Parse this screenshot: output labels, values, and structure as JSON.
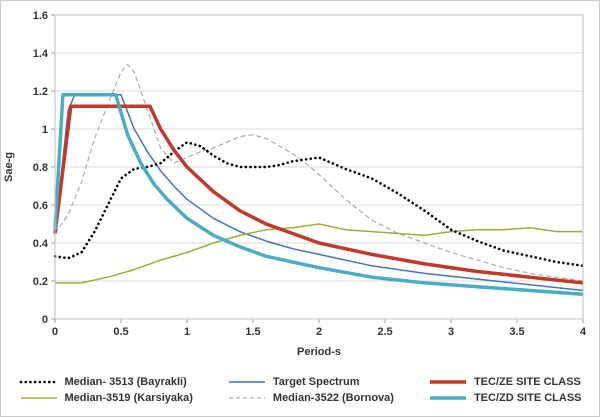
{
  "chart_data": {
    "type": "line",
    "title": "",
    "xlabel": "Period-s",
    "ylabel": "Sae-g",
    "xlim": [
      0,
      4
    ],
    "ylim": [
      0,
      1.6
    ],
    "xticks": [
      "0",
      "0.5",
      "1",
      "1.5",
      "2",
      "2.5",
      "3",
      "3.5",
      "4"
    ],
    "yticks": [
      "0",
      "0.2",
      "0.4",
      "0.6",
      "0.8",
      "1",
      "1.2",
      "1.4",
      "1.6"
    ],
    "grid": "horizontal",
    "legend_position": "bottom",
    "background_color": "#ffffff",
    "gridline_color": "#d9d9d9",
    "series": [
      {
        "id": "median-3513-bayrakli",
        "name": "Median- 3513 (Bayrakli)",
        "color": "#000000",
        "style": "dotted",
        "width": 2.6,
        "x": [
          0,
          0.1,
          0.2,
          0.3,
          0.4,
          0.5,
          0.6,
          0.7,
          0.8,
          0.9,
          1.0,
          1.1,
          1.2,
          1.3,
          1.4,
          1.5,
          1.6,
          1.7,
          1.8,
          1.9,
          2.0,
          2.1,
          2.2,
          2.4,
          2.6,
          2.8,
          3.0,
          3.2,
          3.4,
          3.6,
          3.8,
          4.0
        ],
        "y": [
          0.33,
          0.32,
          0.35,
          0.46,
          0.6,
          0.74,
          0.79,
          0.8,
          0.82,
          0.88,
          0.93,
          0.91,
          0.86,
          0.82,
          0.8,
          0.8,
          0.8,
          0.81,
          0.83,
          0.84,
          0.85,
          0.82,
          0.79,
          0.74,
          0.66,
          0.57,
          0.47,
          0.41,
          0.36,
          0.33,
          0.3,
          0.28
        ]
      },
      {
        "id": "target-spectrum",
        "name": "Target Spectrum",
        "color": "#4472c4",
        "style": "solid",
        "width": 1.5,
        "x": [
          0,
          0.1,
          0.15,
          0.5,
          0.6,
          0.7,
          0.8,
          0.9,
          1.0,
          1.2,
          1.4,
          1.6,
          1.8,
          2.0,
          2.4,
          2.8,
          3.2,
          3.6,
          4.0
        ],
        "y": [
          0.45,
          1.1,
          1.18,
          1.18,
          1.0,
          0.88,
          0.78,
          0.7,
          0.63,
          0.53,
          0.46,
          0.41,
          0.37,
          0.34,
          0.28,
          0.24,
          0.21,
          0.18,
          0.15
        ]
      },
      {
        "id": "tec-ze-site-class",
        "name": "TEC/ZE SITE CLASS",
        "color": "#c0392b",
        "style": "solid",
        "width": 3.5,
        "x": [
          0,
          0.12,
          0.72,
          0.8,
          0.9,
          1.0,
          1.2,
          1.4,
          1.6,
          1.8,
          2.0,
          2.4,
          2.8,
          3.2,
          3.6,
          4.0
        ],
        "y": [
          0.45,
          1.12,
          1.12,
          1.0,
          0.89,
          0.8,
          0.67,
          0.57,
          0.5,
          0.45,
          0.4,
          0.34,
          0.29,
          0.25,
          0.22,
          0.19
        ]
      },
      {
        "id": "median-3519-karsiyaka",
        "name": "Median-3519 (Karsiyaka)",
        "color": "#9cad3b",
        "style": "solid",
        "width": 1.5,
        "x": [
          0,
          0.2,
          0.4,
          0.6,
          0.8,
          1.0,
          1.2,
          1.4,
          1.6,
          1.8,
          2.0,
          2.2,
          2.4,
          2.6,
          2.8,
          3.0,
          3.2,
          3.4,
          3.6,
          3.8,
          4.0
        ],
        "y": [
          0.19,
          0.19,
          0.22,
          0.26,
          0.31,
          0.35,
          0.4,
          0.44,
          0.47,
          0.48,
          0.5,
          0.47,
          0.46,
          0.45,
          0.44,
          0.46,
          0.47,
          0.47,
          0.48,
          0.46,
          0.46
        ]
      },
      {
        "id": "median-3522-bornova",
        "name": "Median-3522 (Bornova)",
        "color": "#ababab",
        "style": "dashed",
        "width": 1.2,
        "x": [
          0,
          0.1,
          0.2,
          0.3,
          0.4,
          0.5,
          0.55,
          0.6,
          0.7,
          0.8,
          0.9,
          1.0,
          1.1,
          1.2,
          1.3,
          1.4,
          1.5,
          1.6,
          1.7,
          1.8,
          1.9,
          2.0,
          2.2,
          2.4,
          2.6,
          2.8,
          3.0,
          3.2,
          3.4,
          3.6,
          3.8,
          4.0
        ],
        "y": [
          0.45,
          0.55,
          0.72,
          0.95,
          1.13,
          1.3,
          1.34,
          1.3,
          1.1,
          0.9,
          0.82,
          0.85,
          0.88,
          0.9,
          0.93,
          0.96,
          0.97,
          0.95,
          0.91,
          0.87,
          0.82,
          0.76,
          0.63,
          0.52,
          0.45,
          0.4,
          0.35,
          0.31,
          0.27,
          0.24,
          0.22,
          0.2
        ]
      },
      {
        "id": "tec-zd-site-class",
        "name": "TEC/ZD SITE CLASS",
        "color": "#4bacc6",
        "style": "solid",
        "width": 3.5,
        "x": [
          0,
          0.06,
          0.46,
          0.55,
          0.65,
          0.75,
          0.85,
          1.0,
          1.2,
          1.4,
          1.6,
          1.8,
          2.0,
          2.4,
          2.8,
          3.2,
          3.6,
          4.0
        ],
        "y": [
          0.47,
          1.18,
          1.18,
          0.97,
          0.82,
          0.71,
          0.63,
          0.53,
          0.44,
          0.38,
          0.33,
          0.3,
          0.27,
          0.22,
          0.19,
          0.17,
          0.15,
          0.13
        ]
      }
    ]
  }
}
